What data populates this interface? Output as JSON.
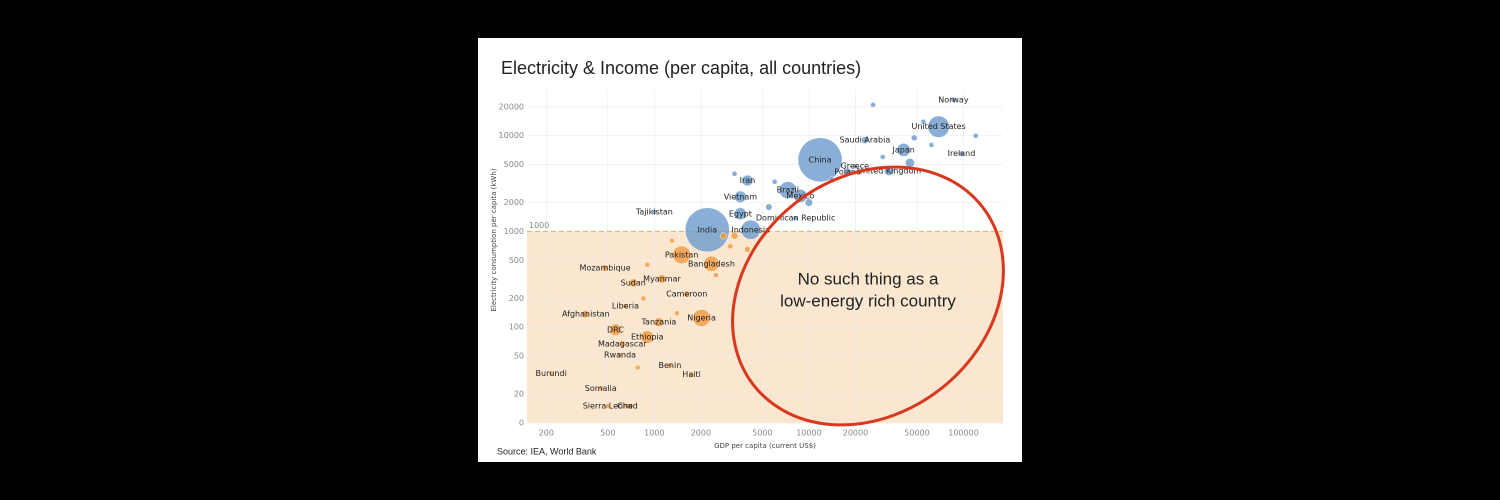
{
  "chart_data": {
    "type": "bubble",
    "title": "Electricity & Income (per capita, all countries)",
    "x_label": "GDP per capita (current US$)",
    "y_label": "Electricity consumption per capita (kWh)",
    "source": "Source: IEA, World Bank",
    "annotation": [
      "No such thing as a",
      "low-energy rich country"
    ],
    "threshold": 1000,
    "region_color": "#fbe6cf",
    "annotation_color": "#d9381e",
    "log_x": true,
    "log_y": true,
    "grid": true,
    "xlim": [
      150,
      180000
    ],
    "ylim": [
      10,
      30000
    ],
    "xticks": [
      200,
      500,
      1000,
      2000,
      5000,
      10000,
      20000,
      50000,
      100000
    ],
    "yticks": [
      {
        "value": 10,
        "label": "0"
      },
      20,
      50,
      100,
      200,
      500,
      1000,
      2000,
      5000,
      10000,
      20000
    ],
    "series": [
      {
        "color": "#6b9bcc",
        "labels": [
          "Norway",
          "United States",
          "Saudi Arabia",
          "Japan",
          "Ireland",
          "China",
          "Greece",
          "Poland",
          "United Kingdom",
          "Iran",
          "Brazil",
          "Mexico",
          "Vietnam",
          "Tajikistan",
          "Egypt",
          "Dominican Republic",
          "India",
          "Indonesia",
          null,
          null,
          null,
          null,
          null,
          null,
          null,
          null,
          null,
          null,
          null,
          null
        ],
        "x": [
          86000,
          69000,
          23000,
          41000,
          97000,
          11800,
          19800,
          17800,
          33000,
          4000,
          7300,
          8800,
          3600,
          1000,
          3600,
          8200,
          2200,
          4200,
          26000,
          55000,
          48000,
          120000,
          30000,
          14000,
          6000,
          3300,
          5500,
          10000,
          45000,
          62000
        ],
        "values": [
          23700,
          12400,
          9000,
          7100,
          6500,
          5600,
          4800,
          4200,
          4300,
          3400,
          2700,
          2350,
          2300,
          1600,
          1530,
          1380,
          1040,
          1040,
          21000,
          14000,
          9500,
          10000,
          6000,
          3500,
          3300,
          4000,
          1800,
          2000,
          5200,
          8000
        ],
        "sizes": [
          5,
          330,
          35,
          125,
          5,
          1400,
          10,
          38,
          67,
          85,
          210,
          128,
          97,
          10,
          104,
          11,
          1400,
          270,
          3,
          10,
          25,
          2,
          8,
          20,
          15,
          5,
          30,
          40,
          60,
          9
        ]
      },
      {
        "color": "#f39a3d",
        "labels": [
          "Pakistan",
          "Bangladesh",
          "Mozambique",
          "Myanmar",
          "Sudan",
          "Cameroon",
          "Liberia",
          "Afghanistan",
          "Tanzania",
          "Nigeria",
          "DRC",
          "Ethiopia",
          "Madagascar",
          "Rwanda",
          "Benin",
          "Haiti",
          "Burundi",
          "Somalia",
          "Sierra Leone",
          "Chad",
          null,
          null,
          null,
          null,
          null,
          null,
          null,
          null,
          null,
          null
        ],
        "x": [
          1500,
          2340,
          480,
          1120,
          730,
          1620,
          650,
          360,
          1070,
          2020,
          560,
          900,
          620,
          600,
          1260,
          1740,
          215,
          450,
          500,
          670,
          2800,
          3100,
          1300,
          900,
          2500,
          850,
          1400,
          4000,
          3300,
          780
        ],
        "values": [
          570,
          460,
          415,
          320,
          290,
          222,
          167,
          137,
          113,
          125,
          94,
          79,
          67,
          51,
          40,
          32,
          33,
          23,
          15,
          15,
          900,
          700,
          800,
          450,
          350,
          200,
          140,
          650,
          900,
          38
        ],
        "sizes": [
          230,
          170,
          32,
          54,
          46,
          27,
          5,
          40,
          62,
          210,
          100,
          120,
          28,
          13,
          13,
          11,
          12,
          17,
          8,
          17,
          30,
          20,
          15,
          10,
          8,
          6,
          12,
          25,
          35,
          5
        ]
      }
    ]
  }
}
